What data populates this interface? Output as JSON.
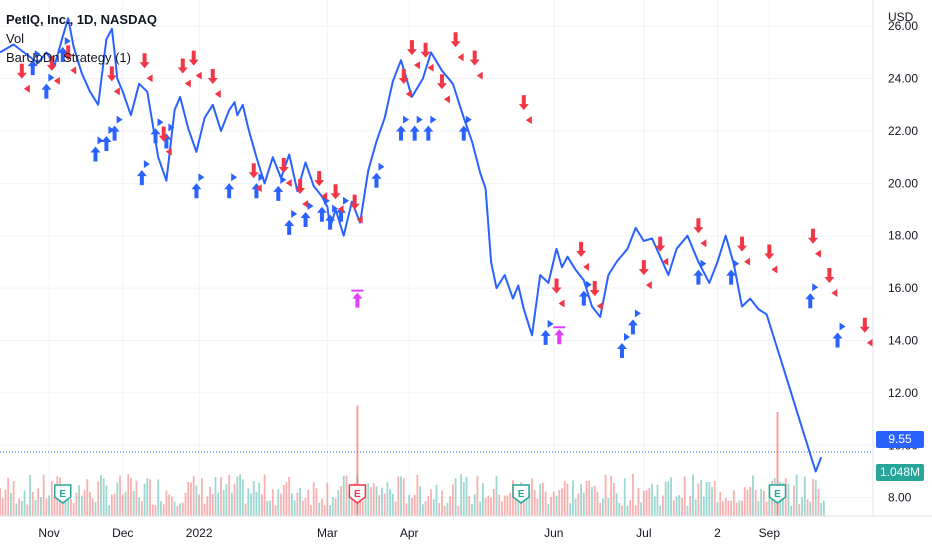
{
  "header": {
    "symbol_title": "PetIQ, Inc., 1D, NASDAQ",
    "volume_label": "Vol",
    "strategy_label": "BarUpDn Strategy (1)"
  },
  "currency_label": "USD",
  "last_price_label": "9.55",
  "last_volume_label": "1.048M",
  "colors": {
    "price_line": "#2962ff",
    "long_arrow": "#2962ff",
    "short_arrow": "#f23645",
    "close_marker": "#e040fb",
    "volume_up": "#26a69a",
    "volume_down": "#ef5350",
    "last_price_bg": "#2962ff",
    "last_volume_bg": "#26a69a",
    "grid": "#f0f3fa"
  },
  "chart_data": {
    "type": "line",
    "x_tick_labels": [
      "Nov",
      "Dec",
      "2022",
      "Mar",
      "Apr",
      "Jun",
      "Jul",
      "2",
      "Sep"
    ],
    "y_ticks": [
      8.0,
      10.0,
      12.0,
      14.0,
      16.0,
      18.0,
      20.0,
      22.0,
      24.0,
      26.0
    ],
    "ylim": [
      7.3,
      27.0
    ],
    "series": [
      {
        "x": [
          0,
          5,
          10,
          14,
          17,
          20,
          23,
          25,
          27,
          30,
          33,
          36,
          39,
          41,
          42,
          43,
          45,
          48,
          51,
          54,
          58,
          61,
          64,
          66,
          69,
          72,
          75,
          78,
          81,
          84,
          86,
          87,
          89,
          91,
          94,
          97,
          100,
          103,
          106,
          109,
          112,
          115,
          118,
          120,
          121,
          123,
          126,
          129,
          132,
          135,
          138,
          141,
          144,
          147,
          151,
          155,
          158,
          162,
          166,
          170,
          173,
          176,
          178,
          180,
          182,
          185,
          188,
          190,
          192,
          195,
          198,
          201,
          204,
          206,
          208,
          211,
          214,
          217,
          220,
          223,
          226,
          230,
          233,
          236,
          239,
          242,
          245,
          248,
          252,
          256,
          260,
          263,
          266,
          269,
          272,
          275,
          278,
          281,
          284,
          287,
          290,
          293,
          296,
          299,
          301
        ],
        "y": [
          25.0,
          25.3,
          24.9,
          24.6,
          25.0,
          24.5,
          25.6,
          26.3,
          25.2,
          24.2,
          23.5,
          23.0,
          25.5,
          25.9,
          25.0,
          24.0,
          23.5,
          22.6,
          23.8,
          23.5,
          21.0,
          20.1,
          22.8,
          23.3,
          22.1,
          21.2,
          22.5,
          23.0,
          22.0,
          22.8,
          23.1,
          22.6,
          23.0,
          22.1,
          21.0,
          20.0,
          21.0,
          20.2,
          21.1,
          19.7,
          20.8,
          19.9,
          19.5,
          19.1,
          18.3,
          19.0,
          18.0,
          19.3,
          18.5,
          20.5,
          21.6,
          22.5,
          23.9,
          24.7,
          23.3,
          24.0,
          25.0,
          24.3,
          23.8,
          22.5,
          21.6,
          20.4,
          19.8,
          17.0,
          16.0,
          16.5,
          15.6,
          16.1,
          15.2,
          14.2,
          16.5,
          16.2,
          17.5,
          16.8,
          17.2,
          16.7,
          16.3,
          15.3,
          14.9,
          16.5,
          17.0,
          17.5,
          18.3,
          17.8,
          17.9,
          17.2,
          16.5,
          17.5,
          18.0,
          17.0,
          16.2,
          17.0,
          18.0,
          16.9,
          15.3,
          15.6,
          15.2,
          15.0,
          14.0,
          13.0,
          12.0,
          11.0,
          10.0,
          9.0,
          9.55
        ]
      }
    ],
    "long_entries": [
      [
        12,
        24.4
      ],
      [
        17,
        23.5
      ],
      [
        23,
        24.9
      ],
      [
        35,
        21.1
      ],
      [
        39,
        21.5
      ],
      [
        42,
        21.9
      ],
      [
        52,
        20.2
      ],
      [
        57,
        21.8
      ],
      [
        61,
        21.6
      ],
      [
        72,
        19.7
      ],
      [
        84,
        19.7
      ],
      [
        94,
        19.7
      ],
      [
        102,
        19.6
      ],
      [
        106,
        18.3
      ],
      [
        112,
        18.6
      ],
      [
        118,
        18.8
      ],
      [
        121,
        18.5
      ],
      [
        125,
        18.8
      ],
      [
        138,
        20.1
      ],
      [
        147,
        21.9
      ],
      [
        152,
        21.9
      ],
      [
        157,
        21.9
      ],
      [
        170,
        21.9
      ],
      [
        200,
        14.1
      ],
      [
        214,
        15.6
      ],
      [
        228,
        13.6
      ],
      [
        232,
        14.5
      ],
      [
        256,
        16.4
      ],
      [
        268,
        16.4
      ],
      [
        297,
        15.5
      ],
      [
        307,
        14.0
      ]
    ],
    "short_entries": [
      [
        8,
        24.3
      ],
      [
        19,
        24.6
      ],
      [
        25,
        25.0
      ],
      [
        41,
        24.2
      ],
      [
        53,
        24.7
      ],
      [
        60,
        21.9
      ],
      [
        67,
        24.5
      ],
      [
        71,
        24.8
      ],
      [
        78,
        24.1
      ],
      [
        93,
        20.5
      ],
      [
        104,
        20.7
      ],
      [
        110,
        19.9
      ],
      [
        117,
        20.2
      ],
      [
        123,
        19.7
      ],
      [
        130,
        19.3
      ],
      [
        148,
        24.1
      ],
      [
        151,
        25.2
      ],
      [
        156,
        25.1
      ],
      [
        162,
        23.9
      ],
      [
        167,
        25.5
      ],
      [
        174,
        24.8
      ],
      [
        192,
        23.1
      ],
      [
        204,
        16.1
      ],
      [
        213,
        17.5
      ],
      [
        218,
        16.0
      ],
      [
        236,
        16.8
      ],
      [
        242,
        17.7
      ],
      [
        256,
        18.4
      ],
      [
        272,
        17.7
      ],
      [
        282,
        17.4
      ],
      [
        298,
        18.0
      ],
      [
        304,
        16.5
      ],
      [
        317,
        14.6
      ]
    ],
    "close_entries": [
      [
        131,
        15.6
      ],
      [
        205,
        14.2
      ]
    ],
    "volume": {
      "marker_labels": [
        "E",
        "E",
        "E",
        "E"
      ],
      "highlight_bars": [
        [
          131,
          0.85
        ],
        [
          285,
          0.8
        ]
      ]
    },
    "annotations": [
      "9.55",
      "1.048M"
    ]
  }
}
